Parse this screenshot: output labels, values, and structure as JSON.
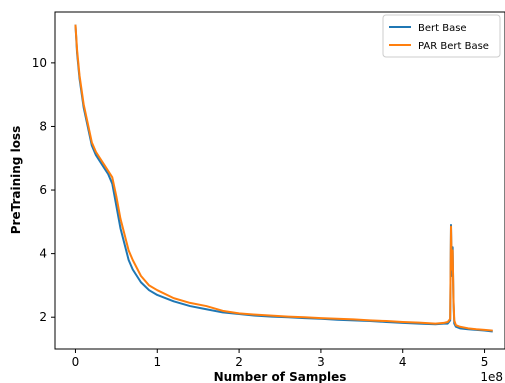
{
  "chart_data": {
    "type": "line",
    "title": "",
    "xlabel": "Number of Samples",
    "ylabel": "PreTraining loss",
    "x_offset_label": "1e8",
    "xlim": [
      -0.25,
      5.25
    ],
    "ylim": [
      1.0,
      11.6
    ],
    "x_ticks": [
      0,
      1,
      2,
      3,
      4,
      5
    ],
    "x_tick_labels": [
      "0",
      "1",
      "2",
      "3",
      "4",
      "5"
    ],
    "y_ticks": [
      2,
      4,
      6,
      8,
      10
    ],
    "y_tick_labels": [
      "2",
      "4",
      "6",
      "8",
      "10"
    ],
    "grid": false,
    "legend_position": "top-right",
    "series": [
      {
        "name": "Bert Base",
        "color": "#1f77b4",
        "x": [
          0.0,
          0.02,
          0.05,
          0.1,
          0.15,
          0.2,
          0.25,
          0.3,
          0.35,
          0.4,
          0.45,
          0.5,
          0.55,
          0.6,
          0.65,
          0.7,
          0.8,
          0.9,
          1.0,
          1.2,
          1.4,
          1.6,
          1.8,
          2.0,
          2.2,
          2.4,
          2.6,
          2.8,
          3.0,
          3.2,
          3.4,
          3.6,
          3.8,
          4.0,
          4.2,
          4.4,
          4.5,
          4.55,
          4.58,
          4.59,
          4.6,
          4.61,
          4.62,
          4.63,
          4.65,
          4.7,
          4.8,
          4.9,
          5.0,
          5.1
        ],
        "y": [
          11.2,
          10.3,
          9.5,
          8.6,
          8.0,
          7.4,
          7.1,
          6.9,
          6.7,
          6.5,
          6.2,
          5.5,
          4.8,
          4.3,
          3.8,
          3.5,
          3.1,
          2.85,
          2.7,
          2.5,
          2.35,
          2.25,
          2.15,
          2.1,
          2.05,
          2.02,
          2.0,
          1.97,
          1.95,
          1.92,
          1.9,
          1.88,
          1.85,
          1.82,
          1.8,
          1.78,
          1.8,
          1.8,
          1.9,
          4.9,
          3.3,
          4.2,
          2.5,
          1.8,
          1.7,
          1.65,
          1.62,
          1.6,
          1.58,
          1.55
        ]
      },
      {
        "name": "PAR Bert Base",
        "color": "#ff7f0e",
        "x": [
          0.0,
          0.02,
          0.05,
          0.1,
          0.15,
          0.2,
          0.25,
          0.3,
          0.35,
          0.4,
          0.45,
          0.5,
          0.55,
          0.6,
          0.65,
          0.7,
          0.8,
          0.9,
          1.0,
          1.2,
          1.4,
          1.6,
          1.8,
          2.0,
          2.2,
          2.4,
          2.6,
          2.8,
          3.0,
          3.2,
          3.4,
          3.6,
          3.8,
          4.0,
          4.2,
          4.4,
          4.5,
          4.55,
          4.58,
          4.59,
          4.6,
          4.61,
          4.62,
          4.63,
          4.65,
          4.7,
          4.8,
          4.9,
          5.0,
          5.1
        ],
        "y": [
          11.2,
          10.4,
          9.6,
          8.7,
          8.1,
          7.5,
          7.2,
          7.0,
          6.8,
          6.6,
          6.4,
          5.8,
          5.1,
          4.6,
          4.1,
          3.8,
          3.3,
          3.0,
          2.85,
          2.6,
          2.45,
          2.35,
          2.2,
          2.12,
          2.08,
          2.05,
          2.02,
          2.0,
          1.97,
          1.95,
          1.93,
          1.9,
          1.88,
          1.85,
          1.83,
          1.8,
          1.82,
          1.85,
          1.95,
          4.85,
          3.5,
          4.1,
          2.6,
          1.9,
          1.75,
          1.7,
          1.65,
          1.62,
          1.6,
          1.58
        ]
      }
    ]
  }
}
